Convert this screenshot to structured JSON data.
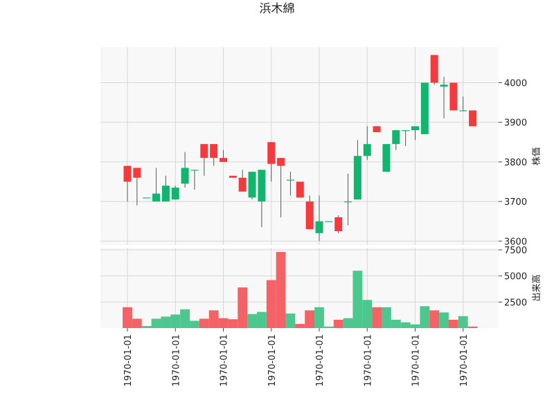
{
  "chart_data": {
    "type": "candlestick",
    "title": "浜木綿",
    "price_axis_label": "株価",
    "volume_axis_label": "出来高",
    "x_tick_labels": [
      "1970-01-01",
      "1970-01-01",
      "1970-01-01",
      "1970-01-01",
      "1970-01-01",
      "1970-01-01",
      "1970-01-01",
      "1970-01-01"
    ],
    "price_ticks": [
      "3600",
      "3700",
      "3800",
      "3900",
      "4000"
    ],
    "volume_ticks": [
      "2500",
      "5000",
      "7500"
    ],
    "price_ylim": [
      3590,
      4090
    ],
    "volume_ylim": [
      0,
      7700
    ],
    "grid": true,
    "colors": {
      "up": "#12b56d",
      "down": "#f53a3d",
      "wick": "#555555",
      "volume_up": "#4cc78d",
      "volume_down": "#f56266",
      "panel_bg": "#f8f8f8",
      "grid": "#d6d6d6"
    },
    "candles": [
      {
        "o": 3790,
        "h": 3790,
        "l": 3700,
        "c": 3750,
        "v": 2000
      },
      {
        "o": 3785,
        "h": 3785,
        "l": 3690,
        "c": 3760,
        "v": 900
      },
      {
        "o": 3710,
        "h": 3710,
        "l": 3710,
        "c": 3710,
        "v": 200
      },
      {
        "o": 3700,
        "h": 3785,
        "l": 3700,
        "c": 3720,
        "v": 900
      },
      {
        "o": 3700,
        "h": 3765,
        "l": 3700,
        "c": 3740,
        "v": 1100
      },
      {
        "o": 3705,
        "h": 3740,
        "l": 3705,
        "c": 3735,
        "v": 1300
      },
      {
        "o": 3745,
        "h": 3825,
        "l": 3735,
        "c": 3785,
        "v": 1800
      },
      {
        "o": 3780,
        "h": 3780,
        "l": 3730,
        "c": 3780,
        "v": 700
      },
      {
        "o": 3845,
        "h": 3845,
        "l": 3765,
        "c": 3810,
        "v": 900
      },
      {
        "o": 3845,
        "h": 3845,
        "l": 3790,
        "c": 3810,
        "v": 1700
      },
      {
        "o": 3810,
        "h": 3830,
        "l": 3800,
        "c": 3800,
        "v": 950
      },
      {
        "o": 3765,
        "h": 3765,
        "l": 3760,
        "c": 3760,
        "v": 850
      },
      {
        "o": 3760,
        "h": 3780,
        "l": 3725,
        "c": 3725,
        "v": 3900
      },
      {
        "o": 3710,
        "h": 3775,
        "l": 3705,
        "c": 3775,
        "v": 1350
      },
      {
        "o": 3700,
        "h": 3780,
        "l": 3635,
        "c": 3780,
        "v": 1550
      },
      {
        "o": 3850,
        "h": 3850,
        "l": 3750,
        "c": 3795,
        "v": 4600
      },
      {
        "o": 3810,
        "h": 3810,
        "l": 3660,
        "c": 3790,
        "v": 7300
      },
      {
        "o": 3755,
        "h": 3775,
        "l": 3715,
        "c": 3755,
        "v": 1400
      },
      {
        "o": 3750,
        "h": 3750,
        "l": 3710,
        "c": 3710,
        "v": 400
      },
      {
        "o": 3700,
        "h": 3715,
        "l": 3630,
        "c": 3630,
        "v": 1700
      },
      {
        "o": 3620,
        "h": 3715,
        "l": 3600,
        "c": 3650,
        "v": 2000
      },
      {
        "o": 3650,
        "h": 3650,
        "l": 3650,
        "c": 3650,
        "v": 150
      },
      {
        "o": 3660,
        "h": 3665,
        "l": 3620,
        "c": 3625,
        "v": 800
      },
      {
        "o": 3700,
        "h": 3770,
        "l": 3640,
        "c": 3700,
        "v": 950
      },
      {
        "o": 3705,
        "h": 3855,
        "l": 3705,
        "c": 3815,
        "v": 5500
      },
      {
        "o": 3815,
        "h": 3890,
        "l": 3805,
        "c": 3845,
        "v": 2700
      },
      {
        "o": 3890,
        "h": 3890,
        "l": 3875,
        "c": 3875,
        "v": 2000
      },
      {
        "o": 3775,
        "h": 3845,
        "l": 3775,
        "c": 3845,
        "v": 2000
      },
      {
        "o": 3845,
        "h": 3880,
        "l": 3830,
        "c": 3880,
        "v": 800
      },
      {
        "o": 3880,
        "h": 3880,
        "l": 3840,
        "c": 3880,
        "v": 550
      },
      {
        "o": 3880,
        "h": 3890,
        "l": 3855,
        "c": 3890,
        "v": 350
      },
      {
        "o": 3870,
        "h": 4000,
        "l": 3870,
        "c": 4000,
        "v": 2100
      },
      {
        "o": 4070,
        "h": 4070,
        "l": 3995,
        "c": 4000,
        "v": 1700
      },
      {
        "o": 3990,
        "h": 4015,
        "l": 3910,
        "c": 3995,
        "v": 1500
      },
      {
        "o": 4000,
        "h": 4000,
        "l": 3930,
        "c": 3930,
        "v": 800
      },
      {
        "o": 3930,
        "h": 3965,
        "l": 3930,
        "c": 3930,
        "v": 1150
      },
      {
        "o": 3930,
        "h": 3930,
        "l": 3890,
        "c": 3890,
        "v": 150
      }
    ]
  }
}
